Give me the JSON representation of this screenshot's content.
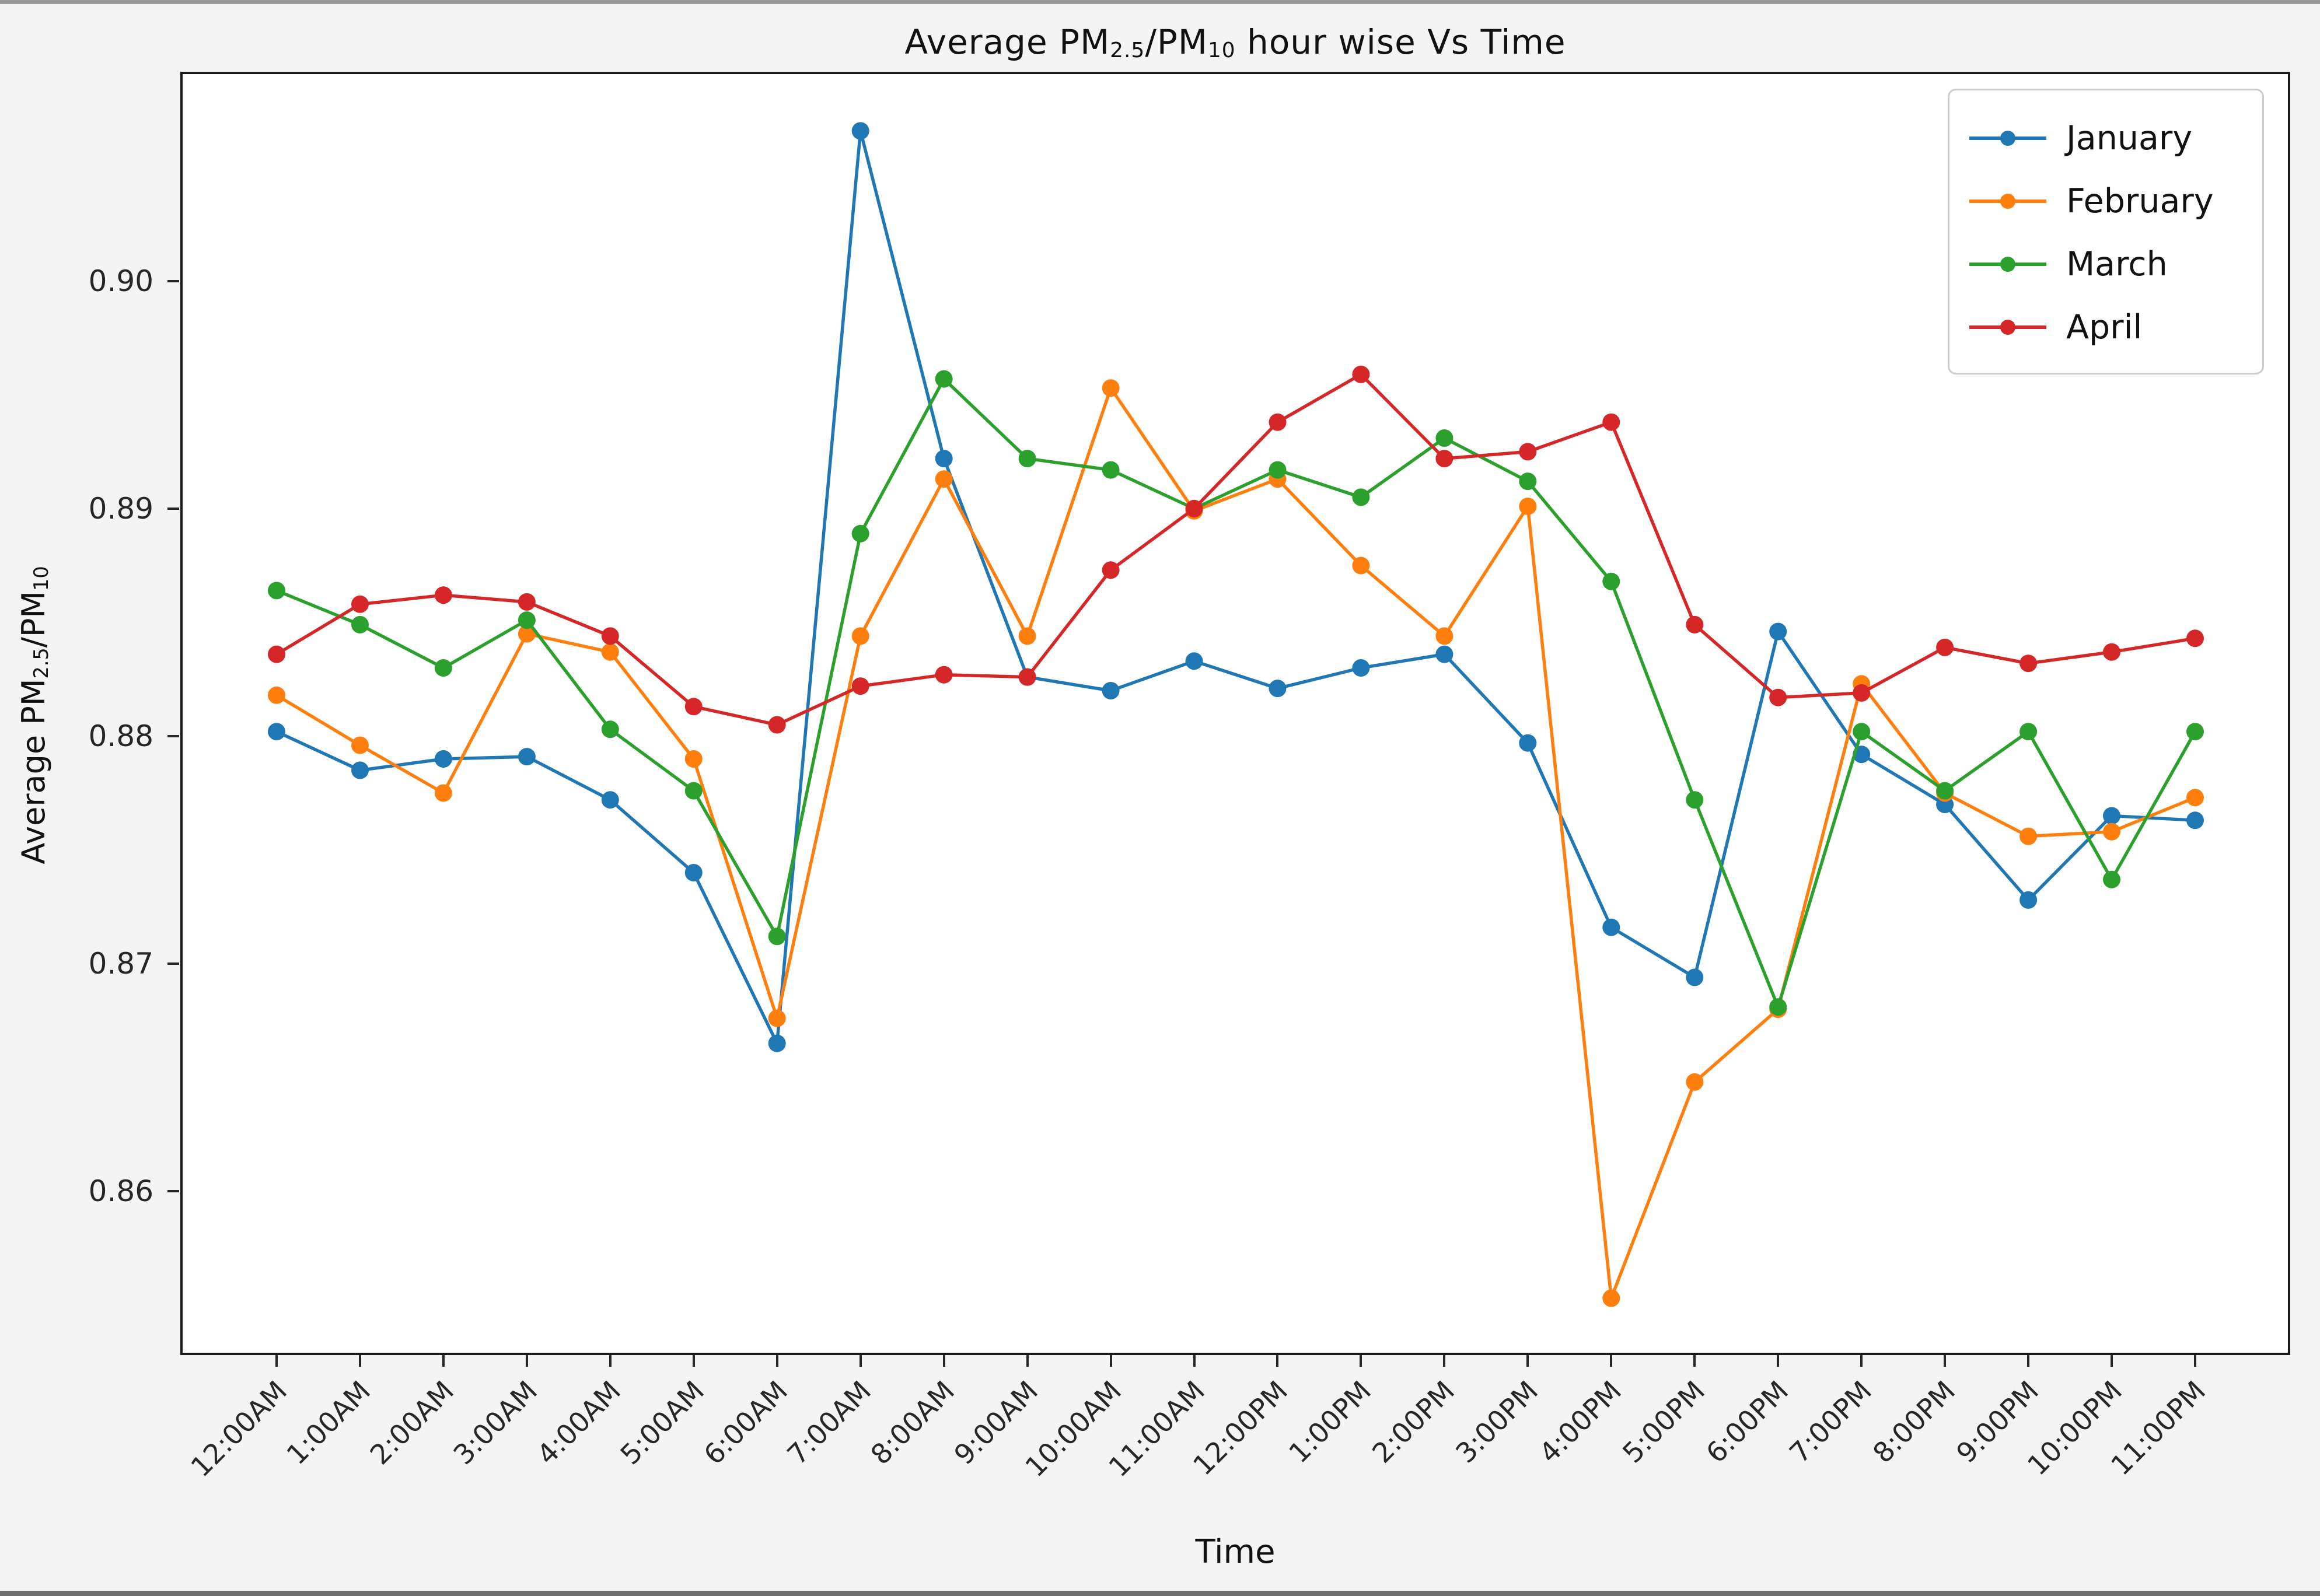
{
  "figure": {
    "background": "#f4f4f4",
    "plot_background": "#ffffff",
    "top_strip_color": "#9a9a9a",
    "bottom_strip_color": "#6e6e6e",
    "spine_color": "#1a1a1a",
    "tick_color": "#262626"
  },
  "chart_data": {
    "type": "line",
    "title": "Average PM2.5/PM10 hour wise Vs Time",
    "title_parts": {
      "pre": "Average PM",
      "sub1": "2.5",
      "mid": "/PM",
      "sub2": "10",
      "post": " hour wise Vs Time"
    },
    "xlabel": "Time",
    "ylabel": "Average PM2.5/PM10",
    "ylabel_parts": {
      "pre": "Average PM",
      "sub1": "2.5",
      "mid": "/PM",
      "sub2": "10",
      "post": ""
    },
    "grid": false,
    "legend_position": "upper right",
    "marker": "circle",
    "x_categories": [
      "12:00AM",
      "1:00AM",
      "2:00AM",
      "3:00AM",
      "4:00AM",
      "5:00AM",
      "6:00AM",
      "7:00AM",
      "8:00AM",
      "9:00AM",
      "10:00AM",
      "11:00AM",
      "12:00PM",
      "1:00PM",
      "2:00PM",
      "3:00PM",
      "4:00PM",
      "5:00PM",
      "6:00PM",
      "7:00PM",
      "8:00PM",
      "9:00PM",
      "10:00PM",
      "11:00PM"
    ],
    "yticks": [
      0.86,
      0.87,
      0.88,
      0.89,
      0.9
    ],
    "ytick_labels": [
      "0.86",
      "0.87",
      "0.88",
      "0.89",
      "0.90"
    ],
    "ylim": [
      0.8528,
      0.9092
    ],
    "series": [
      {
        "name": "January",
        "color": "#1f77b4",
        "values": [
          0.8802,
          0.8785,
          0.879,
          0.8791,
          0.8772,
          0.874,
          0.8665,
          0.9066,
          0.8922,
          0.8826,
          0.882,
          0.8833,
          0.8821,
          0.883,
          0.8836,
          0.8797,
          0.8716,
          0.8694,
          0.8846,
          0.8792,
          0.877,
          0.8728,
          0.8765,
          0.8763
        ]
      },
      {
        "name": "February",
        "color": "#ff7f0e",
        "values": [
          0.8818,
          0.8796,
          0.8775,
          0.8845,
          0.8837,
          0.879,
          0.8676,
          0.8844,
          0.8913,
          0.8844,
          0.8953,
          0.8899,
          0.8913,
          0.8875,
          0.8844,
          0.8901,
          0.8553,
          0.8648,
          0.868,
          0.8823,
          0.8775,
          0.8756,
          0.8758,
          0.8773
        ]
      },
      {
        "name": "March",
        "color": "#2ca02c",
        "values": [
          0.8864,
          0.8849,
          0.883,
          0.8851,
          0.8803,
          0.8776,
          0.8712,
          0.8889,
          0.8957,
          0.8922,
          0.8917,
          0.89,
          0.8917,
          0.8905,
          0.8931,
          0.8912,
          0.8868,
          0.8772,
          0.8681,
          0.8802,
          0.8776,
          0.8802,
          0.8737,
          0.8802
        ]
      },
      {
        "name": "April",
        "color": "#d62728",
        "values": [
          0.8836,
          0.8858,
          0.8862,
          0.8859,
          0.8844,
          0.8813,
          0.8805,
          0.8822,
          0.8827,
          0.8826,
          0.8873,
          0.89,
          0.8938,
          0.8959,
          0.8922,
          0.8925,
          0.8938,
          0.8849,
          0.8817,
          0.8819,
          0.8839,
          0.8832,
          0.8837,
          0.8843
        ]
      }
    ]
  }
}
